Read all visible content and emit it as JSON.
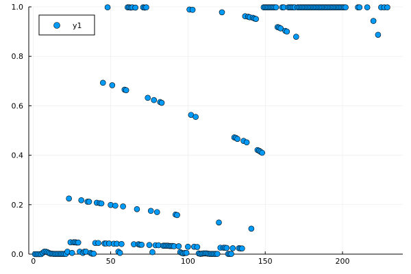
{
  "chart_data": {
    "type": "scatter",
    "title": "",
    "xlabel": "",
    "ylabel": "",
    "xlim": [
      -3,
      239
    ],
    "ylim": [
      0,
      1
    ],
    "x_ticks": [
      {
        "value": 0,
        "label": "0"
      },
      {
        "value": 50,
        "label": "50"
      },
      {
        "value": 100,
        "label": "100"
      },
      {
        "value": 150,
        "label": "150"
      },
      {
        "value": 200,
        "label": "200"
      }
    ],
    "y_ticks": [
      {
        "value": 0,
        "label": "0.0"
      },
      {
        "value": 0.2,
        "label": "0.2"
      },
      {
        "value": 0.4,
        "label": "0.4"
      },
      {
        "value": 0.6,
        "label": "0.6"
      },
      {
        "value": 0.8,
        "label": "0.8"
      },
      {
        "value": 1.0,
        "label": "1.0"
      }
    ],
    "grid": true,
    "legend_position": "top-left",
    "marker_color": "#009af9",
    "series": [
      {
        "name": "y1",
        "points": [
          [
            1,
            0.0
          ],
          [
            2,
            0.0
          ],
          [
            3,
            0.0
          ],
          [
            4,
            0.0
          ],
          [
            5,
            0.0
          ],
          [
            6,
            0.005
          ],
          [
            7,
            0.01
          ],
          [
            8,
            0.01
          ],
          [
            9,
            0.008
          ],
          [
            10,
            0.005
          ],
          [
            11,
            0.002
          ],
          [
            12,
            0.002
          ],
          [
            13,
            0.001
          ],
          [
            14,
            0.001
          ],
          [
            15,
            0.001
          ],
          [
            16,
            0.001
          ],
          [
            17,
            0.001
          ],
          [
            18,
            0.001
          ],
          [
            19,
            0.001
          ],
          [
            20,
            0.001
          ],
          [
            21,
            0.001
          ],
          [
            22,
            0.01
          ],
          [
            23,
            0.225
          ],
          [
            24,
            0.048
          ],
          [
            25,
            0.005
          ],
          [
            26,
            0.048
          ],
          [
            27,
            0.048
          ],
          [
            28,
            0.047
          ],
          [
            29,
            0.047
          ],
          [
            30,
            0.01
          ],
          [
            31,
            0.218
          ],
          [
            32,
            0.005
          ],
          [
            33,
            0.01
          ],
          [
            34,
            0.01
          ],
          [
            35,
            0.212
          ],
          [
            36,
            0.212
          ],
          [
            37,
            0.005
          ],
          [
            38,
            0.002
          ],
          [
            39,
            0.002
          ],
          [
            40,
            0.045
          ],
          [
            41,
            0.208
          ],
          [
            42,
            0.045
          ],
          [
            43,
            0.206
          ],
          [
            44,
            0.205
          ],
          [
            45,
            0.693
          ],
          [
            46,
            0.043
          ],
          [
            47,
            0.043
          ],
          [
            48,
            0.998
          ],
          [
            49,
            0.043
          ],
          [
            50,
            0.199
          ],
          [
            51,
            0.683
          ],
          [
            52,
            0.042
          ],
          [
            53,
            0.196
          ],
          [
            54,
            0.042
          ],
          [
            55,
            0.01
          ],
          [
            56,
            0.005
          ],
          [
            57,
            0.041
          ],
          [
            58,
            0.193
          ],
          [
            59,
            0.665
          ],
          [
            60,
            0.663
          ],
          [
            61,
            0.998
          ],
          [
            62,
            0.998
          ],
          [
            63,
            0.997
          ],
          [
            64,
            0.998
          ],
          [
            65,
            0.04
          ],
          [
            66,
            0.997
          ],
          [
            67,
            0.182
          ],
          [
            68,
            0.04
          ],
          [
            69,
            0.038
          ],
          [
            70,
            0.038
          ],
          [
            71,
            0.998
          ],
          [
            72,
            0.997
          ],
          [
            73,
            0.998
          ],
          [
            74,
            0.632
          ],
          [
            75,
            0.037
          ],
          [
            76,
            0.175
          ],
          [
            77,
            0.008
          ],
          [
            78,
            0.623
          ],
          [
            79,
            0.036
          ],
          [
            80,
            0.17
          ],
          [
            81,
            0.036
          ],
          [
            82,
            0.615
          ],
          [
            83,
            0.612
          ],
          [
            84,
            0.034
          ],
          [
            85,
            0.034
          ],
          [
            86,
            0.034
          ],
          [
            87,
            0.034
          ],
          [
            88,
            0.033
          ],
          [
            89,
            0.033
          ],
          [
            90,
            0.033
          ],
          [
            91,
            0.032
          ],
          [
            92,
            0.16
          ],
          [
            93,
            0.158
          ],
          [
            94,
            0.032
          ],
          [
            95,
            0.008
          ],
          [
            96,
            0.005
          ],
          [
            97,
            0.003
          ],
          [
            98,
            0.005
          ],
          [
            99,
            0.005
          ],
          [
            100,
            0.03
          ],
          [
            101,
            0.989
          ],
          [
            102,
            0.563
          ],
          [
            103,
            0.988
          ],
          [
            104,
            0.03
          ],
          [
            105,
            0.555
          ],
          [
            106,
            0.029
          ],
          [
            107,
            0.003
          ],
          [
            108,
            0.001
          ],
          [
            109,
            0.002
          ],
          [
            110,
            0.003
          ],
          [
            111,
            0.003
          ],
          [
            112,
            0.003
          ],
          [
            113,
            0.002
          ],
          [
            114,
            0.001
          ],
          [
            115,
            0.001
          ],
          [
            116,
            0.001
          ],
          [
            117,
            0.001
          ],
          [
            118,
            0.001
          ],
          [
            119,
            0.001
          ],
          [
            120,
            0.128
          ],
          [
            121,
            0.026
          ],
          [
            122,
            0.978
          ],
          [
            123,
            0.026
          ],
          [
            124,
            0.026
          ],
          [
            125,
            0.025
          ],
          [
            126,
            0.001
          ],
          [
            127,
            0.001
          ],
          [
            128,
            0.001
          ],
          [
            129,
            0.024
          ],
          [
            130,
            0.472
          ],
          [
            131,
            0.47
          ],
          [
            132,
            0.466
          ],
          [
            133,
            0.024
          ],
          [
            134,
            0.023
          ],
          [
            135,
            0.023
          ],
          [
            136,
            0.458
          ],
          [
            137,
            0.962
          ],
          [
            138,
            0.452
          ],
          [
            139,
            0.96
          ],
          [
            140,
            0.958
          ],
          [
            141,
            0.103
          ],
          [
            142,
            0.956
          ],
          [
            143,
            0.953
          ],
          [
            144,
            0.951
          ],
          [
            145,
            0.421
          ],
          [
            146,
            0.418
          ],
          [
            147,
            0.414
          ],
          [
            148,
            0.41
          ],
          [
            149,
            0.998
          ],
          [
            150,
            0.998
          ],
          [
            151,
            0.998
          ],
          [
            152,
            0.998
          ],
          [
            153,
            0.998
          ],
          [
            154,
            0.998
          ],
          [
            155,
            0.998
          ],
          [
            156,
            0.998
          ],
          [
            157,
            0.998
          ],
          [
            158,
            0.918
          ],
          [
            159,
            0.916
          ],
          [
            160,
            0.913
          ],
          [
            161,
            0.998
          ],
          [
            162,
            0.998
          ],
          [
            163,
            0.903
          ],
          [
            164,
            0.9
          ],
          [
            165,
            0.998
          ],
          [
            166,
            0.998
          ],
          [
            167,
            0.998
          ],
          [
            168,
            0.998
          ],
          [
            169,
            0.998
          ],
          [
            170,
            0.879
          ],
          [
            171,
            0.998
          ],
          [
            172,
            0.998
          ],
          [
            173,
            0.998
          ],
          [
            174,
            0.998
          ],
          [
            175,
            0.998
          ],
          [
            176,
            0.998
          ],
          [
            177,
            0.998
          ],
          [
            178,
            0.998
          ],
          [
            179,
            0.998
          ],
          [
            180,
            0.998
          ],
          [
            181,
            0.998
          ],
          [
            182,
            0.998
          ],
          [
            183,
            0.998
          ],
          [
            184,
            0.998
          ],
          [
            185,
            0.998
          ],
          [
            186,
            0.998
          ],
          [
            187,
            0.998
          ],
          [
            188,
            0.998
          ],
          [
            189,
            0.998
          ],
          [
            190,
            0.998
          ],
          [
            191,
            0.998
          ],
          [
            192,
            0.998
          ],
          [
            193,
            0.998
          ],
          [
            194,
            0.998
          ],
          [
            195,
            0.998
          ],
          [
            196,
            0.998
          ],
          [
            197,
            0.998
          ],
          [
            198,
            0.998
          ],
          [
            199,
            0.998
          ],
          [
            200,
            0.998
          ],
          [
            201,
            0.998
          ],
          [
            202,
            0.998
          ],
          [
            210,
            0.998
          ],
          [
            211,
            0.998
          ],
          [
            216,
            0.998
          ],
          [
            220,
            0.943
          ],
          [
            223,
            0.887
          ],
          [
            225,
            0.998
          ],
          [
            227,
            0.998
          ],
          [
            229,
            0.998
          ]
        ]
      }
    ]
  }
}
